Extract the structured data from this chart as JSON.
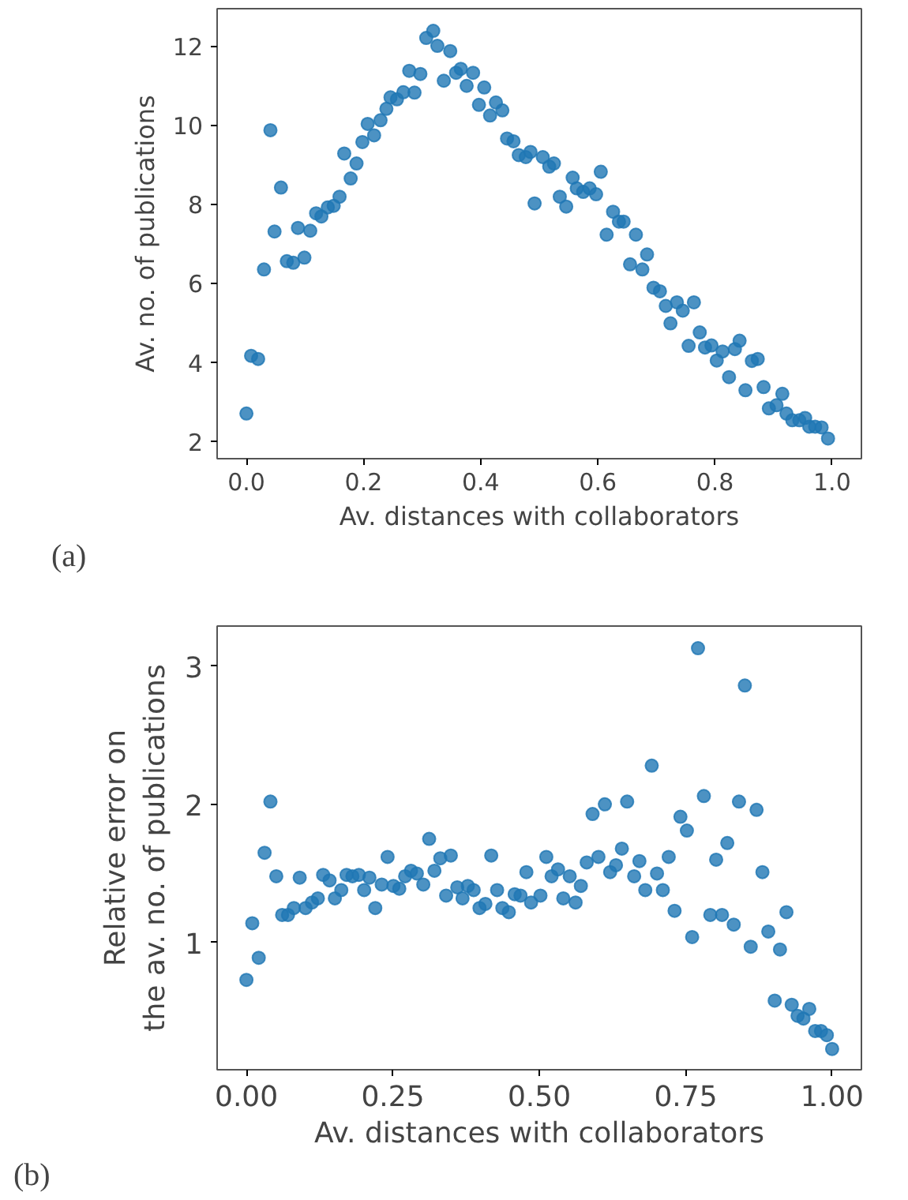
{
  "chart_data": [
    {
      "type": "scatter",
      "xlabel": "Av. distances with collaborators",
      "ylabel": "Av. no. of publications",
      "annotations": [
        "(a)"
      ],
      "marker": "circle",
      "grid": false,
      "color": "#1f77b4",
      "xlim": [
        -0.05,
        1.05
      ],
      "ylim": [
        1.58,
        12.95
      ],
      "xticks": [
        {
          "value": 0,
          "label": "0.0"
        },
        {
          "value": 0.2,
          "label": "0.2"
        },
        {
          "value": 0.4,
          "label": "0.4"
        },
        {
          "value": 0.6,
          "label": "0.6"
        },
        {
          "value": 0.8,
          "label": "0.8"
        },
        {
          "value": 1,
          "label": "1.0"
        }
      ],
      "yticks": [
        2,
        4,
        6,
        8,
        10,
        12
      ],
      "x": [
        0.0,
        0.008,
        0.02,
        0.03,
        0.041,
        0.048,
        0.059,
        0.069,
        0.08,
        0.088,
        0.099,
        0.109,
        0.119,
        0.128,
        0.139,
        0.149,
        0.159,
        0.167,
        0.178,
        0.188,
        0.198,
        0.207,
        0.218,
        0.229,
        0.239,
        0.246,
        0.257,
        0.268,
        0.278,
        0.287,
        0.297,
        0.307,
        0.319,
        0.326,
        0.337,
        0.348,
        0.358,
        0.366,
        0.376,
        0.387,
        0.397,
        0.406,
        0.416,
        0.426,
        0.437,
        0.445,
        0.456,
        0.465,
        0.477,
        0.485,
        0.492,
        0.506,
        0.517,
        0.525,
        0.535,
        0.546,
        0.557,
        0.564,
        0.575,
        0.586,
        0.597,
        0.605,
        0.615,
        0.626,
        0.636,
        0.644,
        0.655,
        0.665,
        0.676,
        0.684,
        0.695,
        0.706,
        0.716,
        0.724,
        0.735,
        0.745,
        0.755,
        0.764,
        0.774,
        0.783,
        0.794,
        0.803,
        0.813,
        0.824,
        0.834,
        0.842,
        0.852,
        0.863,
        0.873,
        0.883,
        0.892,
        0.905,
        0.915,
        0.922,
        0.932,
        0.944,
        0.954,
        0.961,
        0.971,
        0.982,
        0.993
      ],
      "values": [
        2.72,
        4.18,
        4.1,
        6.36,
        9.88,
        7.32,
        8.43,
        6.57,
        6.53,
        7.41,
        6.66,
        7.34,
        7.78,
        7.7,
        7.93,
        7.97,
        8.2,
        9.29,
        8.66,
        9.04,
        9.58,
        10.04,
        9.75,
        10.13,
        10.42,
        10.71,
        10.66,
        10.84,
        11.38,
        10.83,
        11.3,
        12.21,
        12.39,
        12.01,
        11.13,
        11.88,
        11.33,
        11.43,
        11.0,
        11.33,
        10.52,
        10.96,
        10.25,
        10.58,
        10.38,
        9.67,
        9.6,
        9.25,
        9.2,
        9.33,
        8.03,
        9.2,
        8.96,
        9.04,
        8.2,
        7.95,
        8.68,
        8.41,
        8.32,
        8.41,
        8.26,
        8.83,
        7.24,
        7.82,
        7.57,
        7.57,
        6.49,
        7.24,
        6.36,
        6.74,
        5.9,
        5.81,
        5.44,
        5.0,
        5.53,
        5.32,
        4.43,
        5.53,
        4.77,
        4.39,
        4.44,
        4.06,
        4.29,
        3.64,
        4.35,
        4.56,
        3.31,
        4.05,
        4.1,
        3.39,
        2.85,
        2.93,
        3.22,
        2.72,
        2.55,
        2.55,
        2.61,
        2.39,
        2.39,
        2.37,
        2.09
      ]
    },
    {
      "type": "scatter",
      "xlabel": "Av. distances with collaborators",
      "ylabel": "Relative error on\nthe av. no. of publications",
      "annotations": [
        "(b)"
      ],
      "marker": "circle",
      "grid": false,
      "color": "#1f77b4",
      "xlim": [
        -0.05,
        1.05
      ],
      "ylim": [
        0.08,
        3.29
      ],
      "xticks": [
        {
          "value": 0,
          "label": "0.00"
        },
        {
          "value": 0.25,
          "label": "0.25"
        },
        {
          "value": 0.5,
          "label": "0.50"
        },
        {
          "value": 0.75,
          "label": "0.75"
        },
        {
          "value": 1,
          "label": "1.00"
        }
      ],
      "yticks": [
        1,
        2,
        3
      ],
      "x": [
        0.0,
        0.01,
        0.021,
        0.031,
        0.041,
        0.051,
        0.061,
        0.071,
        0.081,
        0.091,
        0.101,
        0.112,
        0.122,
        0.131,
        0.142,
        0.151,
        0.162,
        0.171,
        0.181,
        0.192,
        0.201,
        0.21,
        0.22,
        0.231,
        0.241,
        0.251,
        0.261,
        0.271,
        0.281,
        0.291,
        0.302,
        0.312,
        0.321,
        0.331,
        0.341,
        0.349,
        0.36,
        0.369,
        0.378,
        0.388,
        0.398,
        0.408,
        0.418,
        0.428,
        0.437,
        0.448,
        0.458,
        0.468,
        0.478,
        0.486,
        0.502,
        0.512,
        0.521,
        0.532,
        0.541,
        0.552,
        0.562,
        0.571,
        0.581,
        0.591,
        0.601,
        0.612,
        0.621,
        0.631,
        0.641,
        0.65,
        0.662,
        0.671,
        0.681,
        0.692,
        0.701,
        0.711,
        0.721,
        0.731,
        0.741,
        0.752,
        0.761,
        0.771,
        0.781,
        0.792,
        0.802,
        0.812,
        0.821,
        0.832,
        0.841,
        0.851,
        0.861,
        0.871,
        0.881,
        0.891,
        0.902,
        0.911,
        0.922,
        0.931,
        0.941,
        0.951,
        0.961,
        0.971,
        0.981,
        0.991,
        1.0
      ],
      "values": [
        0.73,
        1.14,
        0.89,
        1.65,
        2.02,
        1.48,
        1.2,
        1.2,
        1.25,
        1.47,
        1.25,
        1.29,
        1.32,
        1.49,
        1.45,
        1.32,
        1.38,
        1.49,
        1.48,
        1.49,
        1.38,
        1.47,
        1.25,
        1.42,
        1.62,
        1.41,
        1.39,
        1.48,
        1.52,
        1.5,
        1.42,
        1.75,
        1.52,
        1.61,
        1.34,
        1.63,
        1.4,
        1.32,
        1.41,
        1.38,
        1.25,
        1.28,
        1.63,
        1.38,
        1.25,
        1.22,
        1.35,
        1.34,
        1.51,
        1.29,
        1.34,
        1.62,
        1.48,
        1.53,
        1.32,
        1.48,
        1.29,
        1.41,
        1.58,
        1.93,
        1.62,
        2.0,
        1.51,
        1.56,
        1.68,
        2.02,
        1.48,
        1.59,
        1.38,
        2.28,
        1.5,
        1.38,
        1.62,
        1.23,
        1.91,
        1.81,
        1.04,
        3.13,
        2.06,
        1.2,
        1.6,
        1.2,
        1.72,
        1.13,
        2.02,
        2.86,
        0.97,
        1.96,
        1.51,
        1.08,
        0.58,
        0.95,
        1.22,
        0.55,
        0.47,
        0.45,
        0.52,
        0.36,
        0.36,
        0.33,
        0.23
      ]
    }
  ]
}
